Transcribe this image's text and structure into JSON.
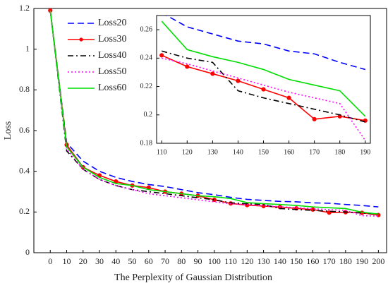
{
  "chart_data": [
    {
      "type": "line",
      "xlabel": "The Perplexity of Gaussian Distribution",
      "ylabel": "Loss",
      "x": [
        0,
        10,
        20,
        30,
        40,
        50,
        60,
        70,
        80,
        90,
        100,
        110,
        120,
        130,
        140,
        150,
        160,
        170,
        180,
        190,
        200
      ],
      "xlim": [
        -10,
        205
      ],
      "xticks": [
        0,
        10,
        20,
        30,
        40,
        50,
        60,
        70,
        80,
        90,
        100,
        110,
        120,
        130,
        140,
        150,
        160,
        170,
        180,
        190,
        200
      ],
      "ylim": [
        0,
        1.2
      ],
      "yticks": [
        0,
        0.2,
        0.4,
        0.6,
        0.8,
        1,
        1.2
      ],
      "grid": false,
      "legend": "upper left",
      "series": [
        {
          "name": "Loss20",
          "color": "#0000ff",
          "linestyle": "--",
          "values": [
            1.19,
            0.54,
            0.45,
            0.4,
            0.37,
            0.35,
            0.335,
            0.325,
            0.31,
            0.295,
            0.285,
            0.272,
            0.262,
            0.257,
            0.252,
            0.25,
            0.245,
            0.243,
            0.237,
            0.232,
            0.225
          ]
        },
        {
          "name": "Loss30",
          "color": "#ff0000",
          "linestyle": "-",
          "marker": "o",
          "values": [
            1.19,
            0.53,
            0.42,
            0.38,
            0.35,
            0.33,
            0.32,
            0.3,
            0.29,
            0.28,
            0.26,
            0.242,
            0.234,
            0.229,
            0.224,
            0.218,
            0.212,
            0.197,
            0.199,
            0.196,
            0.185
          ]
        },
        {
          "name": "Loss40",
          "color": "#000000",
          "linestyle": "-.",
          "values": [
            1.19,
            0.5,
            0.41,
            0.36,
            0.33,
            0.31,
            0.3,
            0.29,
            0.28,
            0.27,
            0.26,
            0.245,
            0.24,
            0.237,
            0.217,
            0.212,
            0.208,
            0.204,
            0.2,
            0.195,
            0.19
          ]
        },
        {
          "name": "Loss50",
          "color": "#ff00ff",
          "linestyle": ":",
          "values": [
            1.19,
            0.51,
            0.41,
            0.36,
            0.33,
            0.31,
            0.29,
            0.28,
            0.27,
            0.26,
            0.25,
            0.24,
            0.236,
            0.231,
            0.226,
            0.221,
            0.216,
            0.212,
            0.208,
            0.182,
            0.18
          ]
        },
        {
          "name": "Loss60",
          "color": "#00dd00",
          "linestyle": "-",
          "values": [
            1.19,
            0.52,
            0.42,
            0.37,
            0.34,
            0.33,
            0.31,
            0.3,
            0.29,
            0.28,
            0.275,
            0.266,
            0.246,
            0.241,
            0.237,
            0.232,
            0.225,
            0.221,
            0.217,
            0.199,
            0.19
          ]
        }
      ]
    },
    {
      "type": "line",
      "x": [
        110,
        120,
        130,
        140,
        150,
        160,
        170,
        180,
        190
      ],
      "xlim": [
        108,
        192
      ],
      "xticks": [
        110,
        120,
        130,
        140,
        150,
        160,
        170,
        180,
        190
      ],
      "ylim": [
        0.18,
        0.27
      ],
      "yticks": [
        0.18,
        0.2,
        0.22,
        0.24,
        0.26
      ],
      "grid": false,
      "series": [
        {
          "color": "#0000ff",
          "linestyle": "--",
          "values": [
            0.272,
            0.262,
            0.257,
            0.252,
            0.25,
            0.245,
            0.243,
            0.237,
            0.232
          ]
        },
        {
          "color": "#ff0000",
          "linestyle": "-",
          "marker": "o",
          "values": [
            0.242,
            0.234,
            0.229,
            0.224,
            0.218,
            0.212,
            0.197,
            0.199,
            0.196
          ]
        },
        {
          "color": "#000000",
          "linestyle": "-.",
          "values": [
            0.245,
            0.24,
            0.237,
            0.217,
            0.212,
            0.208,
            0.204,
            0.2,
            0.195
          ]
        },
        {
          "color": "#ff00ff",
          "linestyle": ":",
          "values": [
            0.24,
            0.236,
            0.231,
            0.226,
            0.221,
            0.216,
            0.212,
            0.208,
            0.182
          ]
        },
        {
          "color": "#00dd00",
          "linestyle": "-",
          "values": [
            0.266,
            0.246,
            0.241,
            0.237,
            0.232,
            0.225,
            0.221,
            0.217,
            0.199
          ]
        }
      ]
    }
  ]
}
